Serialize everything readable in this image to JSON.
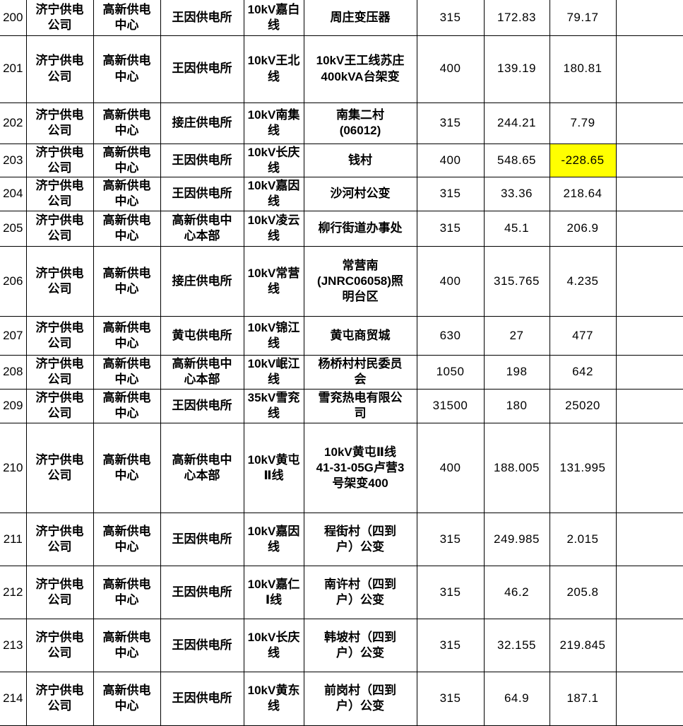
{
  "colors": {
    "text": "#000000",
    "border": "#000000",
    "highlight_yellow": "#FFFF00",
    "blue_value": "#5B8DEE",
    "background": "#FFFFFF"
  },
  "table": {
    "description_visible_headers": "",
    "rows": [
      {
        "no": "200",
        "company": "济宁供电\n公司",
        "center": "高新供电\n中心",
        "station": "王因供电所",
        "line": "10kV嘉白\n线",
        "name": "周庄变压器",
        "capacity": "315",
        "load": "172.83",
        "margin": "79.17",
        "extra": ""
      },
      {
        "no": "201",
        "company": "济宁供电\n公司",
        "center": "高新供电\n中心",
        "station": "王因供电所",
        "line": "10kV王北\n线",
        "name": "10kV王工线苏庄\n400kVA台架变",
        "capacity": "400",
        "load": "139.19",
        "margin": "180.81",
        "extra": ""
      },
      {
        "no": "202",
        "company": "济宁供电\n公司",
        "center": "高新供电\n中心",
        "station": "接庄供电所",
        "line": "10kV南集\n线",
        "name": "南集二村\n(06012)",
        "capacity": "315",
        "load": "244.21",
        "margin": "7.79",
        "extra": "",
        "load_style": "blue"
      },
      {
        "no": "203",
        "company": "济宁供电\n公司",
        "center": "高新供电\n中心",
        "station": "王因供电所",
        "line": "10kV长庆\n线",
        "name": "钱村",
        "capacity": "400",
        "load": "548.65",
        "margin": "-228.65",
        "extra": "",
        "margin_style": "yellow"
      },
      {
        "no": "204",
        "company": "济宁供电\n公司",
        "center": "高新供电\n中心",
        "station": "王因供电所",
        "line": "10kV嘉因\n线",
        "name": "沙河村公变",
        "capacity": "315",
        "load": "33.36",
        "margin": "218.64",
        "extra": ""
      },
      {
        "no": "205",
        "company": "济宁供电\n公司",
        "center": "高新供电\n中心",
        "station": "高新供电中\n心本部",
        "line": "10kV凌云\n线",
        "name": "柳行街道办事处",
        "capacity": "315",
        "load": "45.1",
        "margin": "206.9",
        "extra": ""
      },
      {
        "no": "206",
        "company": "济宁供电\n公司",
        "center": "高新供电\n中心",
        "station": "接庄供电所",
        "line": "10kV常营\n线",
        "name": "常营南\n(JNRC06058)照\n明台区",
        "capacity": "400",
        "load": "315.765",
        "margin": "4.235",
        "extra": ""
      },
      {
        "no": "207",
        "company": "济宁供电\n公司",
        "center": "高新供电\n中心",
        "station": "黄屯供电所",
        "line": "10kV锦江\n线",
        "name": "黄屯商贸城",
        "capacity": "630",
        "load": "27",
        "margin": "477",
        "extra": ""
      },
      {
        "no": "208",
        "company": "济宁供电\n公司",
        "center": "高新供电\n中心",
        "station": "高新供电中\n心本部",
        "line": "10kV岷江\n线",
        "name": "杨桥村村民委员\n会",
        "capacity": "1050",
        "load": "198",
        "margin": "642",
        "extra": ""
      },
      {
        "no": "209",
        "company": "济宁供电\n公司",
        "center": "高新供电\n中心",
        "station": "王因供电所",
        "line": "35kV雪兖\n线",
        "name": "雪兖热电有限公\n司",
        "capacity": "31500",
        "load": "180",
        "margin": "25020",
        "extra": ""
      },
      {
        "no": "210",
        "company": "济宁供电\n公司",
        "center": "高新供电\n中心",
        "station": "高新供电中\n心本部",
        "line": "10kV黄屯\nⅡ线",
        "name": "10kV黄屯Ⅱ线\n41-31-05G卢营3\n号架变400",
        "capacity": "400",
        "load": "188.005",
        "margin": "131.995",
        "extra": ""
      },
      {
        "no": "211",
        "company": "济宁供电\n公司",
        "center": "高新供电\n中心",
        "station": "王因供电所",
        "line": "10kV嘉因\n线",
        "name": "程街村（四到\n户）公变",
        "capacity": "315",
        "load": "249.985",
        "margin": "2.015",
        "extra": ""
      },
      {
        "no": "212",
        "company": "济宁供电\n公司",
        "center": "高新供电\n中心",
        "station": "王因供电所",
        "line": "10kV嘉仁\nⅠ线",
        "name": "南许村（四到\n户）公变",
        "capacity": "315",
        "load": "46.2",
        "margin": "205.8",
        "extra": ""
      },
      {
        "no": "213",
        "company": "济宁供电\n公司",
        "center": "高新供电\n中心",
        "station": "王因供电所",
        "line": "10kV长庆\n线",
        "name": "韩坡村（四到\n户）公变",
        "capacity": "315",
        "load": "32.155",
        "margin": "219.845",
        "extra": ""
      },
      {
        "no": "214",
        "company": "济宁供电\n公司",
        "center": "高新供电\n中心",
        "station": "王因供电所",
        "line": "10kV黄东\n线",
        "name": "前岗村（四到\n户）公变",
        "capacity": "315",
        "load": "64.9",
        "margin": "187.1",
        "extra": ""
      }
    ]
  }
}
